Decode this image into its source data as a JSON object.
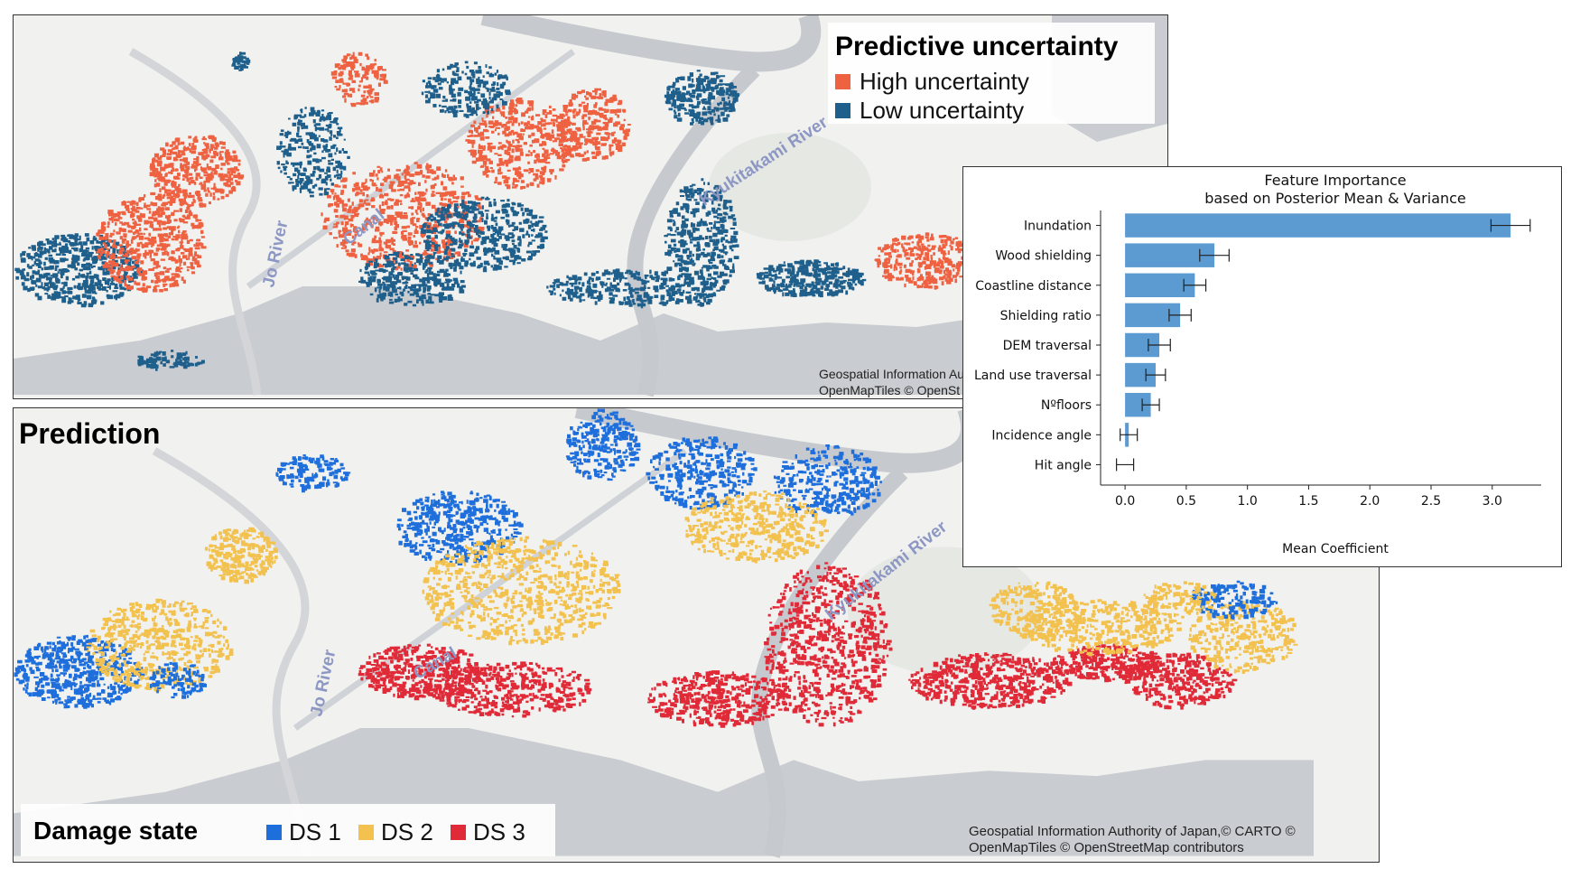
{
  "top_map": {
    "legend": {
      "title": "Predictive uncertainty",
      "items": [
        {
          "label": "High uncertainty",
          "color": "#ee6141"
        },
        {
          "label": "Low uncertainty",
          "color": "#1f5f8b"
        }
      ]
    },
    "labels": {
      "jo_river": "Jo River",
      "canal": "Canal",
      "kyukitakami_river": "Kyukitakami River"
    },
    "attribution": [
      "Geospatial Information Au",
      "OpenMapTiles © OpenSt"
    ]
  },
  "bottom_map": {
    "title": "Prediction",
    "legend": {
      "title": "Damage state",
      "items": [
        {
          "label": "DS 1",
          "color": "#1e6fdc"
        },
        {
          "label": "DS 2",
          "color": "#f2c14e"
        },
        {
          "label": "DS 3",
          "color": "#e02a38"
        }
      ]
    },
    "labels": {
      "jo_river": "Jo River",
      "canal": "Canal",
      "kyukitakami_river": "Kyukitakami River"
    },
    "attribution": [
      "Geospatial Information Authority of Japan,© CARTO ©",
      "OpenMapTiles © OpenStreetMap contributors"
    ]
  },
  "chart_data": {
    "type": "bar",
    "orientation": "horizontal",
    "title": "Feature Importance\nbased on Posterior Mean & Variance",
    "xlabel": "Mean Coefficient",
    "ylabel": "",
    "categories": [
      "Inundation",
      "Wood shielding",
      "Coastline distance",
      "Shielding ratio",
      "DEM traversal",
      "Land use traversal",
      "Nºfloors",
      "Incidence angle",
      "Hit angle"
    ],
    "values": [
      3.15,
      0.73,
      0.57,
      0.45,
      0.28,
      0.25,
      0.21,
      0.03,
      0.0
    ],
    "errors": [
      0.16,
      0.12,
      0.09,
      0.09,
      0.09,
      0.08,
      0.07,
      0.07,
      0.07
    ],
    "xticks": [
      "0.0",
      "0.5",
      "1.0",
      "1.5",
      "2.0",
      "2.5",
      "3.0"
    ],
    "xlim": [
      -0.2,
      3.4
    ],
    "bar_color": "#5b9bd1"
  }
}
